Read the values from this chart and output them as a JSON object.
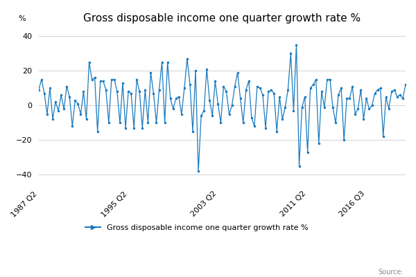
{
  "title": "Gross disposable income one quarter growth rate %",
  "ylabel": "%",
  "legend_label": "Gross disposable income one quarter growth rate %",
  "source_text": "Source:",
  "line_color": "#1a7abf",
  "background_color": "#ffffff",
  "grid_color": "#cccccc",
  "ylim": [
    -45,
    45
  ],
  "yticks": [
    -40,
    -20,
    0,
    20,
    40
  ],
  "x_tick_labels": [
    "1987 Q2",
    "1995 Q2",
    "2003 Q2",
    "2011 Q2",
    "2016 Q3"
  ],
  "x_tick_positions": [
    0,
    32,
    64,
    96,
    117
  ],
  "title_fontsize": 11,
  "tick_fontsize": 8,
  "legend_fontsize": 8,
  "values": [
    9.0,
    15.0,
    7.0,
    -5.0,
    10.0,
    -8.0,
    2.0,
    -3.0,
    6.0,
    -2.0,
    11.0,
    5.0,
    -12.0,
    3.0,
    1.0,
    -5.0,
    8.0,
    -8.0,
    25.0,
    15.0,
    16.0,
    -15.0,
    14.0,
    14.0,
    9.0,
    -10.0,
    15.0,
    15.0,
    8.0,
    -10.0,
    13.0,
    -13.0,
    8.0,
    7.0,
    -13.0,
    15.0,
    8.0,
    -13.0,
    9.0,
    -10.0,
    19.0,
    7.0,
    -10.0,
    9.0,
    25.0,
    -10.0,
    25.0,
    4.0,
    -2.0,
    4.0,
    5.0,
    -5.0,
    10.0,
    27.0,
    12.0,
    -15.0,
    20.0,
    -38.0,
    -6.0,
    -3.0,
    21.0,
    3.0,
    -6.0,
    14.0,
    1.0,
    -10.0,
    11.0,
    8.0,
    -5.0,
    0.0,
    11.0,
    19.0,
    4.0,
    -10.0,
    9.0,
    14.0,
    -7.0,
    -12.0,
    11.0,
    10.0,
    6.0,
    -13.0,
    8.0,
    9.0,
    7.0,
    -15.0,
    5.0,
    -8.0,
    -1.0,
    9.0,
    30.0,
    -3.0,
    35.0,
    -35.0,
    -1.0,
    5.0,
    -27.0,
    10.0,
    12.0,
    15.0,
    -22.0,
    8.0,
    -1.0,
    15.0,
    15.0,
    -1.0,
    -10.0,
    6.0,
    10.0,
    -20.0,
    4.0,
    4.0,
    11.0,
    -5.0,
    -2.0,
    9.0,
    -8.0,
    4.0,
    -2.0,
    0.0,
    7.0,
    9.0,
    10.0,
    -18.0,
    5.0,
    -2.0,
    8.0,
    9.0,
    5.0,
    6.0,
    4.0,
    12.0
  ]
}
